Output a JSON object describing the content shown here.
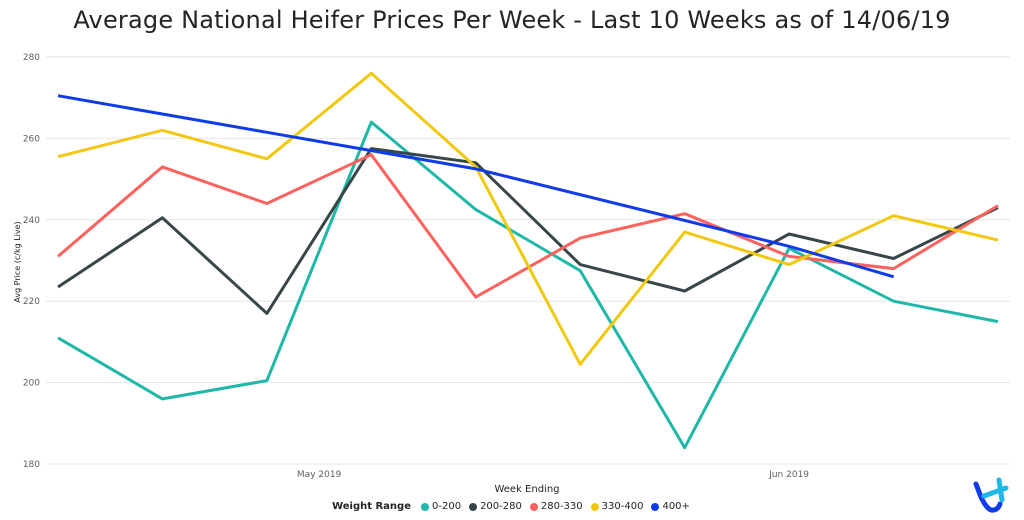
{
  "chart_data": {
    "type": "line",
    "title": "Average National Heifer Prices Per Week - Last 10 Weeks as of 14/06/19",
    "xlabel": "Week Ending",
    "ylabel": "Avg Price (c/kg Live)",
    "ylim": [
      180,
      280
    ],
    "yticks": [
      180,
      200,
      220,
      240,
      260,
      280
    ],
    "xtick_labels": [
      "May 2019",
      "Jun 2019"
    ],
    "legend_title": "Weight Range",
    "legend_position": "bottom-center",
    "grid": true,
    "series": [
      {
        "name": "0-200",
        "color": "#1FB8A8",
        "values": [
          211,
          196,
          200.5,
          264,
          242.5,
          227.5,
          184,
          233,
          220,
          215
        ]
      },
      {
        "name": "200-280",
        "color": "#374649",
        "values": [
          223.5,
          240.5,
          217,
          257.5,
          254,
          229,
          222.5,
          236.5,
          230.5,
          243
        ]
      },
      {
        "name": "280-330",
        "color": "#FD625E",
        "values": [
          231,
          253,
          244,
          256,
          221,
          235.5,
          241.5,
          231,
          228,
          243.5
        ]
      },
      {
        "name": "330-400",
        "color": "#F2C80F",
        "values": [
          255.5,
          262,
          255,
          276,
          253,
          204.5,
          237,
          229,
          241,
          235
        ]
      },
      {
        "name": "400+",
        "color": "#0F3BE8",
        "values": [
          270.5,
          266,
          261.5,
          257,
          252.5,
          null,
          null,
          233.5,
          226,
          null
        ]
      }
    ]
  }
}
